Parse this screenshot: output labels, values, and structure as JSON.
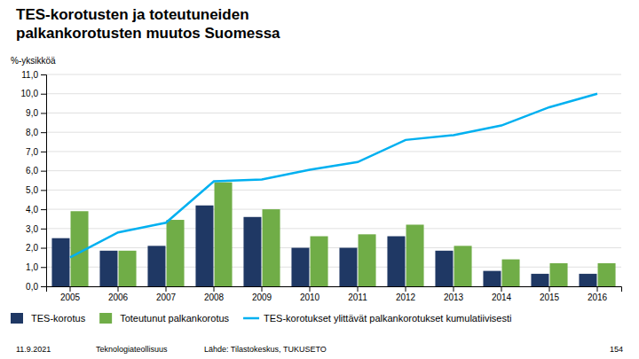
{
  "chart_data": {
    "type": "bar",
    "title": [
      "TES-korotusten ja toteutuneiden",
      "palkankorotusten muutos Suomessa"
    ],
    "ylabel": "%-yksikköä",
    "categories": [
      "2005",
      "2006",
      "2007",
      "2008",
      "2009",
      "2010",
      "2011",
      "2012",
      "2013",
      "2014",
      "2015",
      "2016"
    ],
    "series": [
      {
        "name": "TES-korotus",
        "type": "bar",
        "color": "#1f3864",
        "values": [
          2.5,
          1.85,
          2.1,
          4.2,
          3.6,
          2.0,
          2.0,
          2.6,
          1.85,
          0.8,
          0.65,
          0.65
        ]
      },
      {
        "name": "Toteutunut palkankorotus",
        "type": "bar",
        "color": "#70ad47",
        "values": [
          3.9,
          1.85,
          3.45,
          5.4,
          4.0,
          2.6,
          2.7,
          3.2,
          2.1,
          1.4,
          1.2,
          1.2
        ]
      },
      {
        "name": "TES-korotukset ylittävät palkankorotukset kumulatiivisesti",
        "type": "line",
        "color": "#00b0f0",
        "values": [
          1.5,
          2.8,
          3.3,
          5.45,
          5.55,
          6.05,
          6.45,
          7.6,
          7.85,
          8.35,
          9.3,
          10.0
        ]
      }
    ],
    "ylim": [
      0.0,
      11.0
    ],
    "yticks": [
      {
        "value": 0.0,
        "label": "0,0"
      },
      {
        "value": 1.0,
        "label": "1,0"
      },
      {
        "value": 2.0,
        "label": "2,0"
      },
      {
        "value": 3.0,
        "label": "3,0"
      },
      {
        "value": 4.0,
        "label": "4,0"
      },
      {
        "value": 5.0,
        "label": "5,0"
      },
      {
        "value": 6.0,
        "label": "6,0"
      },
      {
        "value": 7.0,
        "label": "7,0"
      },
      {
        "value": 8.0,
        "label": "8,0"
      },
      {
        "value": 9.0,
        "label": "9,0"
      },
      {
        "value": 10.0,
        "label": "10,0"
      },
      {
        "value": 11.0,
        "label": "11,0"
      }
    ],
    "grid": true,
    "legend": "bottom",
    "annotations": [
      "11.9.2021",
      "Teknologiateollisuus",
      "Lähde: Tilastokeskus, TUKUSETO",
      "154"
    ]
  }
}
